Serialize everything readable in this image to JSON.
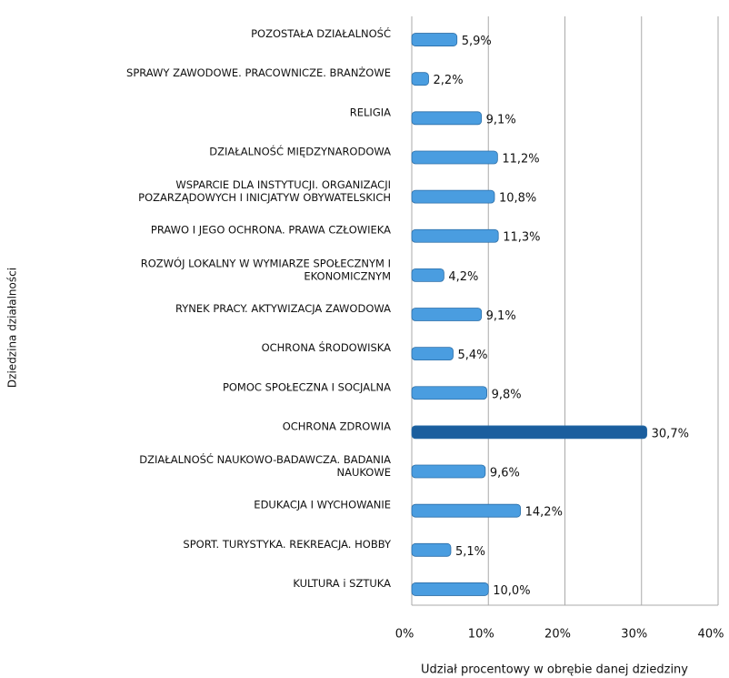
{
  "chart_data": {
    "type": "bar",
    "orientation": "horizontal",
    "categories": [
      "POZOSTAŁA DZIAŁALNOŚĆ",
      "SPRAWY ZAWODOWE. PRACOWNICZE. BRANŻOWE",
      "RELIGIA",
      "DZIAŁALNOŚĆ MIĘDZYNARODOWA",
      "WSPARCIE DLA INSTYTUCJI. ORGANIZACJI\nPOZARZĄDOWYCH I INICJATYW OBYWATELSKICH",
      "PRAWO I JEGO OCHRONA. PRAWA CZŁOWIEKA",
      "ROZWÓJ LOKALNY W WYMIARZE SPOŁECZNYM  I\nEKONOMICZNYM",
      "RYNEK PRACY. AKTYWIZACJA ZAWODOWA",
      "OCHRONA ŚRODOWISKA",
      "POMOC SPOŁECZNA I SOCJALNA",
      "OCHRONA ZDROWIA",
      "DZIAŁALNOŚĆ NAUKOWO-BADAWCZA. BADANIA\nNAUKOWE",
      "EDUKACJA I WYCHOWANIE",
      "SPORT. TURYSTYKA. REKREACJA. HOBBY",
      "KULTURA i SZTUKA"
    ],
    "values": [
      5.9,
      2.2,
      9.1,
      11.2,
      10.8,
      11.3,
      4.2,
      9.1,
      5.4,
      9.8,
      30.7,
      9.6,
      14.2,
      5.1,
      10.0
    ],
    "value_labels": [
      "5,9%",
      "2,2%",
      "9,1%",
      "11,2%",
      "10,8%",
      "11,3%",
      "4,2%",
      "9,1%",
      "5,4%",
      "9,8%",
      "30,7%",
      "9,6%",
      "14,2%",
      "5,1%",
      "10,0%"
    ],
    "colors": [
      "#4a9de0",
      "#4a9de0",
      "#4a9de0",
      "#4a9de0",
      "#4a9de0",
      "#4a9de0",
      "#4a9de0",
      "#4a9de0",
      "#4a9de0",
      "#4a9de0",
      "#1a5e9e",
      "#4a9de0",
      "#4a9de0",
      "#4a9de0",
      "#4a9de0"
    ],
    "xlim": [
      0,
      40
    ],
    "xticks": [
      {
        "value": 0,
        "label": "0%"
      },
      {
        "value": 10,
        "label": "10%"
      },
      {
        "value": 20,
        "label": "20%"
      },
      {
        "value": 30,
        "label": "30%"
      },
      {
        "value": 40,
        "label": "40%"
      }
    ],
    "grid": true,
    "x_label": "Udział procentowy w obrębie danej dziedziny",
    "y_label": "Dziedzina działalności"
  }
}
